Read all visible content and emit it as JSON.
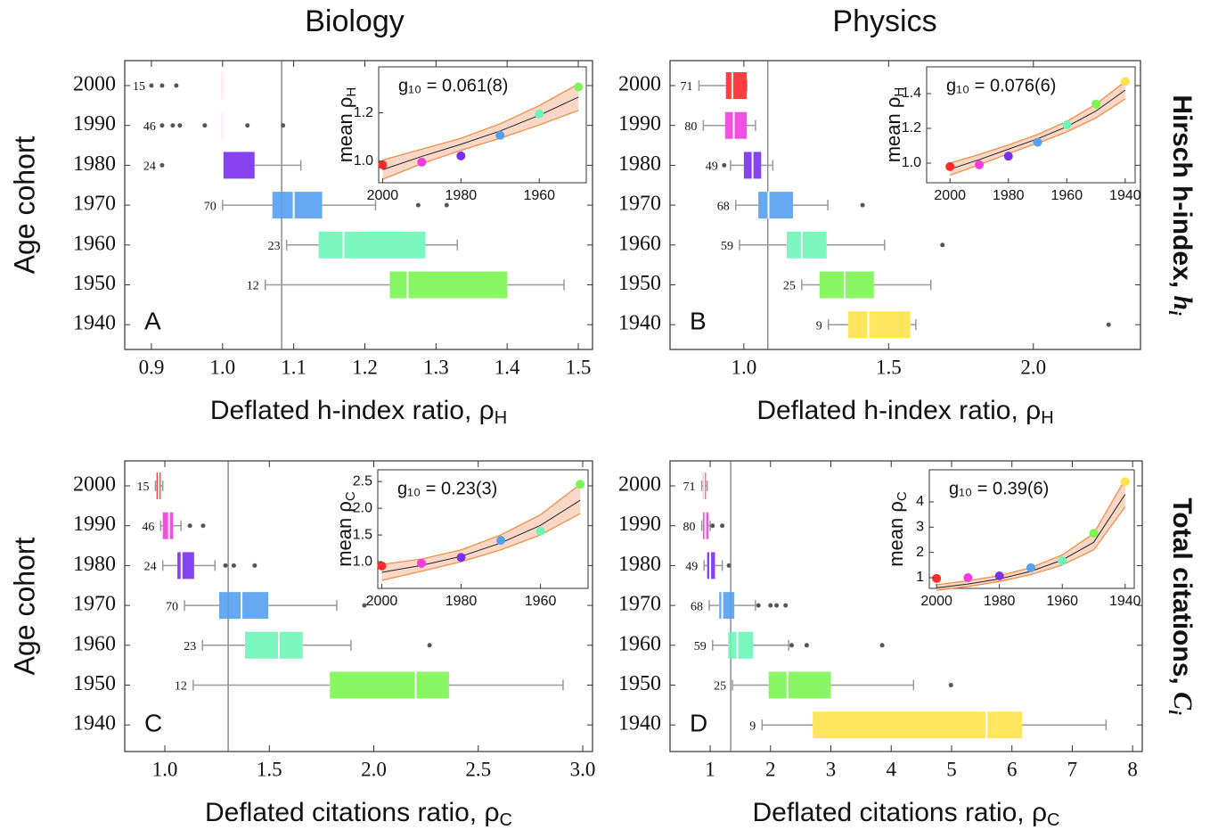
{
  "column_titles": [
    "Biology",
    "Physics"
  ],
  "row_labels": [
    {
      "text": "Hirsch h-index, ",
      "var": "h",
      "sub": "i"
    },
    {
      "text": "Total citations, ",
      "var": "C",
      "sub": "i"
    }
  ],
  "chart_data": [
    {
      "type": "box",
      "panel_label": "A",
      "ylabel": "Age cohort",
      "xlabel": "Deflated h-index ratio, ρ",
      "xlabel_sub": "H",
      "categories": [
        "2000",
        "1990",
        "1980",
        "1970",
        "1960",
        "1950",
        "1940"
      ],
      "colors": [
        "#ff2a2a",
        "#f23ce0",
        "#7b2ff0",
        "#56a0f0",
        "#6df5b8",
        "#7cf552",
        "#ffe34d"
      ],
      "counts": [
        15,
        46,
        24,
        70,
        23,
        12,
        null
      ],
      "boxes": [
        {
          "whislo": 1.0,
          "q1": 1.0,
          "med": 1.0,
          "q3": 1.0,
          "whishi": 1.0,
          "fliers": [
            0.9,
            0.915,
            0.935
          ]
        },
        {
          "whislo": 1.0,
          "q1": 1.0,
          "med": 1.0,
          "q3": 1.0,
          "whishi": 1.0,
          "fliers": [
            0.915,
            0.93,
            0.94,
            0.975,
            1.035,
            1.085
          ]
        },
        {
          "whislo": 1.0,
          "q1": 1.0,
          "med": 1.0,
          "q3": 1.045,
          "whishi": 1.11,
          "fliers": [
            0.915
          ]
        },
        {
          "whislo": 1.0,
          "q1": 1.07,
          "med": 1.1,
          "q3": 1.14,
          "whishi": 1.215,
          "fliers": [
            1.275,
            1.315
          ]
        },
        {
          "whislo": 1.09,
          "q1": 1.135,
          "med": 1.17,
          "q3": 1.285,
          "whishi": 1.33,
          "fliers": []
        },
        {
          "whislo": 1.06,
          "q1": 1.235,
          "med": 1.26,
          "q3": 1.4,
          "whishi": 1.48,
          "fliers": []
        },
        null
      ],
      "refline": 1.083,
      "xlim": [
        0.8625,
        1.52
      ],
      "xticks": [
        {
          "value": 0.9,
          "label": "0.9"
        },
        {
          "value": 1.0,
          "label": "1.0"
        },
        {
          "value": 1.1,
          "label": "1.1"
        },
        {
          "value": 1.2,
          "label": "1.2"
        },
        {
          "value": 1.3,
          "label": "1.3"
        },
        {
          "value": 1.4,
          "label": "1.4"
        },
        {
          "value": 1.5,
          "label": "1.5"
        }
      ],
      "inset": {
        "text": "g₁₀ = 0.061(8)",
        "ylabel": "mean ρ",
        "ylabel_sub": "H",
        "x": [
          2000,
          1990,
          1980,
          1970,
          1960,
          1950
        ],
        "values": [
          0.985,
          0.996,
          1.022,
          1.107,
          1.196,
          1.307
        ],
        "fit": [
          0.965,
          1.02,
          1.07,
          1.125,
          1.19,
          1.265
        ],
        "band_low": [
          0.925,
          0.99,
          1.045,
          1.095,
          1.15,
          1.21
        ],
        "band_high": [
          1.005,
          1.05,
          1.095,
          1.155,
          1.23,
          1.32
        ],
        "xlim": [
          2001,
          1948
        ],
        "ylim": [
          0.911,
          1.39
        ],
        "xticks": [
          2000,
          1980,
          1960
        ],
        "yticks": [
          {
            "value": 1.0,
            "label": "1.0"
          },
          {
            "value": 1.2,
            "label": "1.2"
          }
        ]
      }
    },
    {
      "type": "box",
      "panel_label": "B",
      "xlabel": "Deflated h-index ratio, ρ",
      "xlabel_sub": "H",
      "categories": [
        "2000",
        "1990",
        "1980",
        "1970",
        "1960",
        "1950",
        "1940"
      ],
      "colors": [
        "#ff2a2a",
        "#f23ce0",
        "#7b2ff0",
        "#56a0f0",
        "#6df5b8",
        "#7cf552",
        "#ffe34d"
      ],
      "counts": [
        71,
        80,
        49,
        68,
        59,
        25,
        9
      ],
      "boxes": [
        {
          "whislo": 0.845,
          "q1": 0.938,
          "med": 0.96,
          "q3": 1.01,
          "whishi": 1.01,
          "fliers": []
        },
        {
          "whislo": 0.86,
          "q1": 0.935,
          "med": 0.965,
          "q3": 1.01,
          "whishi": 1.04,
          "fliers": []
        },
        {
          "whislo": 0.954,
          "q1": 1.0,
          "med": 1.03,
          "q3": 1.06,
          "whishi": 1.1,
          "fliers": [
            0.932
          ]
        },
        {
          "whislo": 0.972,
          "q1": 1.05,
          "med": 1.085,
          "q3": 1.17,
          "whishi": 1.29,
          "fliers": [
            1.41
          ]
        },
        {
          "whislo": 0.985,
          "q1": 1.148,
          "med": 1.2,
          "q3": 1.286,
          "whishi": 1.486,
          "fliers": [
            1.686
          ]
        },
        {
          "whislo": 1.2,
          "q1": 1.262,
          "med": 1.348,
          "q3": 1.449,
          "whishi": 1.646,
          "fliers": []
        },
        {
          "whislo": 1.292,
          "q1": 1.36,
          "med": 1.43,
          "q3": 1.575,
          "whishi": 1.594,
          "fliers": [
            2.26
          ]
        }
      ],
      "refline": 1.083,
      "xlim": [
        0.745,
        2.37
      ],
      "xticks": [
        {
          "value": 1.0,
          "label": "1.0"
        },
        {
          "value": 1.5,
          "label": "1.5"
        },
        {
          "value": 2.0,
          "label": "2.0"
        }
      ],
      "inset": {
        "text": "g₁₀ = 0.076(6)",
        "ylabel": "mean ρ",
        "ylabel_sub": "H",
        "x": [
          2000,
          1990,
          1980,
          1970,
          1960,
          1950,
          1940
        ],
        "values": [
          0.98,
          0.99,
          1.04,
          1.12,
          1.22,
          1.34,
          1.47
        ],
        "fit": [
          0.965,
          1.02,
          1.08,
          1.14,
          1.21,
          1.3,
          1.42
        ],
        "band_low": [
          0.93,
          0.99,
          1.055,
          1.115,
          1.18,
          1.26,
          1.37
        ],
        "band_high": [
          1.0,
          1.05,
          1.105,
          1.165,
          1.24,
          1.34,
          1.47
        ],
        "xlim": [
          2008,
          1936.6
        ],
        "ylim": [
          0.887,
          1.554
        ],
        "xticks": [
          2000,
          1980,
          1960,
          1940
        ],
        "yticks": [
          {
            "value": 1.0,
            "label": "1.0"
          },
          {
            "value": 1.2,
            "label": "1.2"
          },
          {
            "value": 1.4,
            "label": "1.4"
          }
        ]
      }
    },
    {
      "type": "box",
      "panel_label": "C",
      "ylabel": "Age cohort",
      "xlabel": "Deflated citations ratio, ρ",
      "xlabel_sub": "C",
      "categories": [
        "2000",
        "1990",
        "1980",
        "1970",
        "1960",
        "1950",
        "1940"
      ],
      "colors": [
        "#ff2a2a",
        "#f23ce0",
        "#7b2ff0",
        "#56a0f0",
        "#6df5b8",
        "#7cf552",
        "#ffe34d"
      ],
      "counts": [
        15,
        46,
        24,
        70,
        23,
        12,
        null
      ],
      "boxes": [
        {
          "whislo": 0.955,
          "q1": 0.96,
          "med": 0.97,
          "q3": 0.98,
          "whishi": 0.99,
          "fliers": []
        },
        {
          "whislo": 0.98,
          "q1": 0.99,
          "med": 1.02,
          "q3": 1.04,
          "whishi": 1.077,
          "fliers": [
            1.12,
            1.183
          ]
        },
        {
          "whislo": 0.99,
          "q1": 1.06,
          "med": 1.08,
          "q3": 1.14,
          "whishi": 1.24,
          "fliers": [
            1.29,
            1.33,
            1.43
          ]
        },
        {
          "whislo": 1.094,
          "q1": 1.26,
          "med": 1.367,
          "q3": 1.495,
          "whishi": 1.823,
          "fliers": [
            1.955
          ]
        },
        {
          "whislo": 1.18,
          "q1": 1.384,
          "med": 1.546,
          "q3": 1.66,
          "whishi": 1.891,
          "fliers": [
            2.267
          ]
        },
        {
          "whislo": 1.136,
          "q1": 1.79,
          "med": 2.2,
          "q3": 2.36,
          "whishi": 2.906,
          "fliers": []
        },
        null
      ],
      "refline": 1.303,
      "xlim": [
        0.808,
        3.047
      ],
      "xticks": [
        {
          "value": 1.0,
          "label": "1.0"
        },
        {
          "value": 1.5,
          "label": "1.5"
        },
        {
          "value": 2.0,
          "label": "2.0"
        },
        {
          "value": 2.5,
          "label": "2.5"
        },
        {
          "value": 3.0,
          "label": "3.0"
        }
      ],
      "inset": {
        "text": "g₁₀ = 0.23(3)",
        "ylabel": "mean ρ",
        "ylabel_sub": "C",
        "x": [
          2000,
          1990,
          1980,
          1970,
          1960,
          1950
        ],
        "values": [
          0.92,
          0.97,
          1.08,
          1.4,
          1.57,
          2.45
        ],
        "fit": [
          0.8,
          0.93,
          1.1,
          1.35,
          1.68,
          2.15
        ],
        "band_low": [
          0.65,
          0.82,
          1.0,
          1.22,
          1.5,
          1.9
        ],
        "band_high": [
          0.95,
          1.05,
          1.22,
          1.5,
          1.88,
          2.45
        ],
        "xlim": [
          2001,
          1948
        ],
        "ylim": [
          0.5,
          2.72
        ],
        "xticks": [
          2000,
          1980,
          1960
        ],
        "yticks": [
          {
            "value": 1.0,
            "label": "1.0"
          },
          {
            "value": 1.5,
            "label": "1.5"
          },
          {
            "value": 2.0,
            "label": "2.0"
          },
          {
            "value": 2.5,
            "label": "2.5"
          }
        ]
      }
    },
    {
      "type": "box",
      "panel_label": "D",
      "xlabel": "Deflated citations ratio, ρ",
      "xlabel_sub": "C",
      "categories": [
        "2000",
        "1990",
        "1980",
        "1970",
        "1960",
        "1950",
        "1940"
      ],
      "colors": [
        "#ff2a2a",
        "#f23ce0",
        "#7b2ff0",
        "#56a0f0",
        "#6df5b8",
        "#7cf552",
        "#ffe34d"
      ],
      "counts": [
        71,
        80,
        49,
        68,
        59,
        25,
        9
      ],
      "boxes": [
        {
          "whislo": 0.86,
          "q1": 0.88,
          "med": 0.9,
          "q3": 0.93,
          "whishi": 0.95,
          "fliers": []
        },
        {
          "whislo": 0.86,
          "q1": 0.88,
          "med": 0.92,
          "q3": 0.97,
          "whishi": 1.0,
          "fliers": [
            1.04,
            1.2
          ]
        },
        {
          "whislo": 0.9,
          "q1": 0.95,
          "med": 1.0,
          "q3": 1.08,
          "whishi": 1.2,
          "fliers": [
            1.31
          ]
        },
        {
          "whislo": 0.985,
          "q1": 1.15,
          "med": 1.2,
          "q3": 1.4,
          "whishi": 1.75,
          "fliers": [
            1.8,
            2.0,
            2.1,
            2.25
          ]
        },
        {
          "whislo": 1.04,
          "q1": 1.3,
          "med": 1.45,
          "q3": 1.71,
          "whishi": 2.3,
          "fliers": [
            2.35,
            2.6,
            3.85
          ]
        },
        {
          "whislo": 1.37,
          "q1": 1.97,
          "med": 2.28,
          "q3": 3.0,
          "whishi": 4.37,
          "fliers": [
            4.99
          ]
        },
        {
          "whislo": 1.86,
          "q1": 2.7,
          "med": 5.58,
          "q3": 6.17,
          "whishi": 7.56,
          "fliers": []
        }
      ],
      "refline": 1.34,
      "xlim": [
        0.335,
        8.16
      ],
      "xticks": [
        1,
        2,
        3,
        4,
        5,
        6,
        7,
        8
      ],
      "inset": {
        "text": "g₁₀ = 0.39(6)",
        "ylabel": "mean ρ",
        "ylabel_sub": "C",
        "x": [
          2000,
          1990,
          1980,
          1970,
          1960,
          1950,
          1940
        ],
        "values": [
          0.97,
          1.0,
          1.07,
          1.39,
          1.67,
          2.76,
          4.8
        ],
        "fit": [
          0.6,
          0.75,
          0.95,
          1.25,
          1.7,
          2.4,
          4.3
        ],
        "band_low": [
          0.5,
          0.65,
          0.85,
          1.12,
          1.5,
          2.1,
          3.8
        ],
        "band_high": [
          0.72,
          0.88,
          1.08,
          1.4,
          1.9,
          2.75,
          4.9
        ],
        "xlim": [
          2002.3,
          1937.1
        ],
        "ylim": [
          0.576,
          5.27
        ],
        "xticks": [
          2000,
          1980,
          1960,
          1940
        ],
        "yticks": [
          1,
          2,
          3,
          4
        ]
      }
    }
  ]
}
